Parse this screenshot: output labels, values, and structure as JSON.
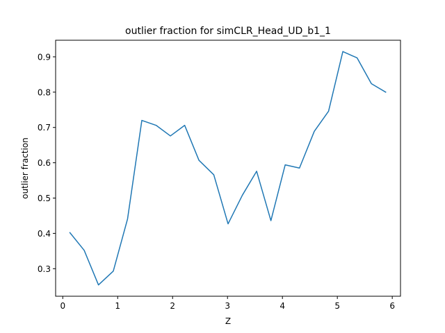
{
  "chart_data": {
    "type": "line",
    "title": "outlier fraction for simCLR_Head_UD_b1_1",
    "xlabel": "Z",
    "ylabel": "outlier fraction",
    "xlim": [
      -0.13,
      6.15
    ],
    "ylim": [
      0.222,
      0.947
    ],
    "xticks": [
      0,
      1,
      2,
      3,
      4,
      5,
      6
    ],
    "yticks": [
      0.3,
      0.4,
      0.5,
      0.6,
      0.7,
      0.8,
      0.9
    ],
    "xtick_labels": [
      "0",
      "1",
      "2",
      "3",
      "4",
      "5",
      "6"
    ],
    "ytick_labels": [
      "0.3",
      "0.4",
      "0.5",
      "0.6",
      "0.7",
      "0.8",
      "0.9"
    ],
    "grid": false,
    "series": [
      {
        "color": "#1f77b4",
        "x": [
          0.13,
          0.39,
          0.65,
          0.92,
          1.18,
          1.44,
          1.7,
          1.96,
          2.22,
          2.48,
          2.75,
          3.01,
          3.27,
          3.53,
          3.79,
          4.05,
          4.31,
          4.58,
          4.84,
          5.1,
          5.36,
          5.62,
          5.88
        ],
        "y": [
          0.402,
          0.352,
          0.254,
          0.293,
          0.441,
          0.72,
          0.706,
          0.676,
          0.706,
          0.607,
          0.566,
          0.427,
          0.508,
          0.576,
          0.436,
          0.594,
          0.585,
          0.689,
          0.746,
          0.915,
          0.897,
          0.824,
          0.8
        ]
      }
    ]
  }
}
